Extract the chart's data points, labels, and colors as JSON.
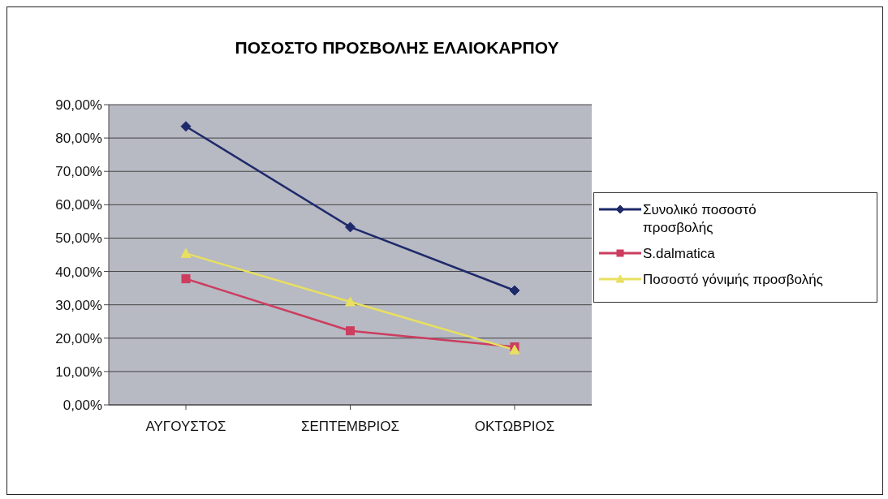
{
  "chart_data": {
    "type": "line",
    "title": "ΠΟΣΟΣΤΟ ΠΡΟΣΒΟΛΗΣ ΕΛΑΙΟΚΑΡΠΟΥ",
    "categories": [
      "ΑΥΓΟΥΣΤΟΣ",
      "ΣΕΠΤΕΜΒΡΙΟΣ",
      "ΟΚΤΩΒΡΙΟΣ"
    ],
    "series": [
      {
        "name": "Συνολικό ποσοστό προσβολής",
        "color": "#1f2a6b",
        "marker": "diamond",
        "values": [
          83.5,
          53.3,
          34.3
        ]
      },
      {
        "name": "S.dalmatica",
        "color": "#cc3d5e",
        "marker": "square",
        "values": [
          37.8,
          22.2,
          17.4
        ]
      },
      {
        "name": "Ποσοστό γόνιμής προσβολής",
        "color": "#e8e060",
        "marker": "triangle",
        "values": [
          45.4,
          30.9,
          16.5
        ]
      }
    ],
    "ylim": [
      0,
      90
    ],
    "yticks": [
      {
        "value": 0,
        "label": "0,00%"
      },
      {
        "value": 10,
        "label": "10,00%"
      },
      {
        "value": 20,
        "label": "20,00%"
      },
      {
        "value": 30,
        "label": "30,00%"
      },
      {
        "value": 40,
        "label": "40,00%"
      },
      {
        "value": 50,
        "label": "50,00%"
      },
      {
        "value": 60,
        "label": "60,00%"
      },
      {
        "value": 70,
        "label": "70,00%"
      },
      {
        "value": 80,
        "label": "80,00%"
      },
      {
        "value": 90,
        "label": "90,00%"
      }
    ],
    "grid": "y",
    "legend": "right"
  }
}
